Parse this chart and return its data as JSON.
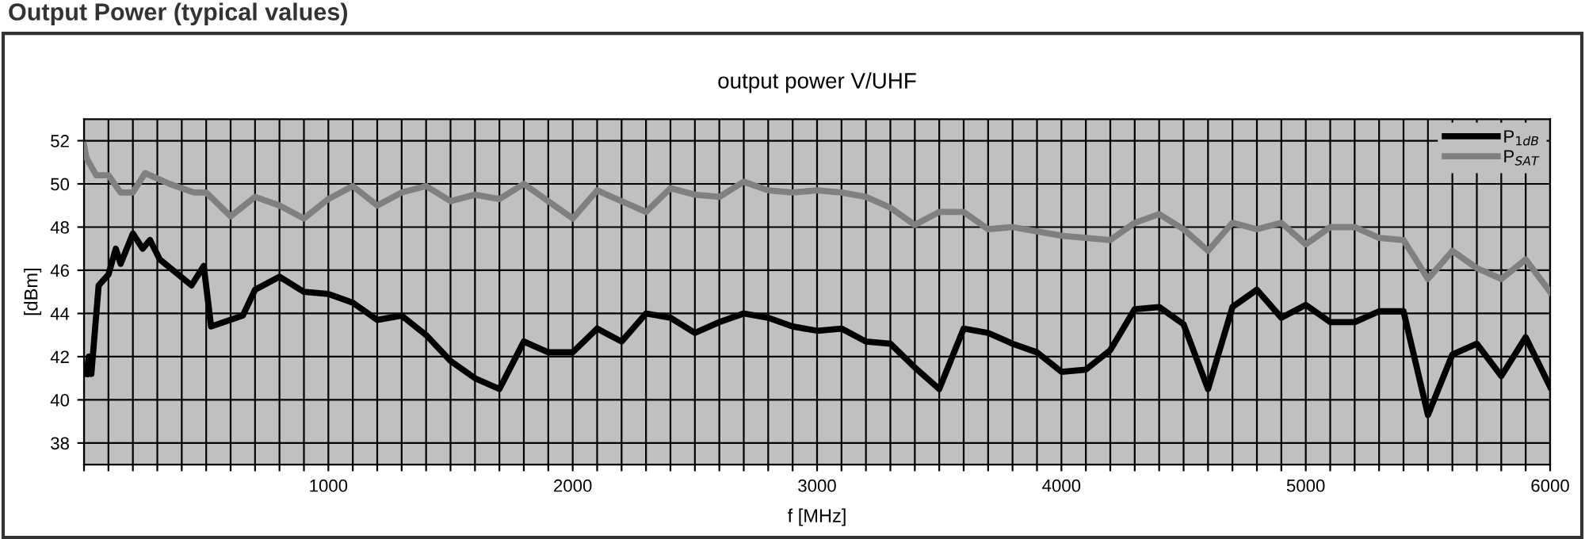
{
  "chart_data": {
    "type": "line",
    "title": "output power V/UHF",
    "xlabel": "f [MHz]",
    "ylabel": "[dBm]",
    "annotations": [
      "Output Power (typical values)"
    ],
    "xlim": [
      0,
      6000
    ],
    "ylim": [
      37,
      53
    ],
    "xticks": [
      {
        "value": 0,
        "label": null
      },
      {
        "value": 100,
        "label": null
      },
      {
        "value": 200,
        "label": null
      },
      {
        "value": 300,
        "label": null
      },
      {
        "value": 400,
        "label": null
      },
      {
        "value": 500,
        "label": null
      },
      {
        "value": 600,
        "label": null
      },
      {
        "value": 700,
        "label": null
      },
      {
        "value": 800,
        "label": null
      },
      {
        "value": 900,
        "label": null
      },
      1000,
      {
        "value": 1100,
        "label": null
      },
      {
        "value": 1200,
        "label": null
      },
      {
        "value": 1300,
        "label": null
      },
      {
        "value": 1400,
        "label": null
      },
      {
        "value": 1500,
        "label": null
      },
      {
        "value": 1600,
        "label": null
      },
      {
        "value": 1700,
        "label": null
      },
      {
        "value": 1800,
        "label": null
      },
      {
        "value": 1900,
        "label": null
      },
      2000,
      {
        "value": 2100,
        "label": null
      },
      {
        "value": 2200,
        "label": null
      },
      {
        "value": 2300,
        "label": null
      },
      {
        "value": 2400,
        "label": null
      },
      {
        "value": 2500,
        "label": null
      },
      {
        "value": 2600,
        "label": null
      },
      {
        "value": 2700,
        "label": null
      },
      {
        "value": 2800,
        "label": null
      },
      {
        "value": 2900,
        "label": null
      },
      3000,
      {
        "value": 3100,
        "label": null
      },
      {
        "value": 3200,
        "label": null
      },
      {
        "value": 3300,
        "label": null
      },
      {
        "value": 3400,
        "label": null
      },
      {
        "value": 3500,
        "label": null
      },
      {
        "value": 3600,
        "label": null
      },
      {
        "value": 3700,
        "label": null
      },
      {
        "value": 3800,
        "label": null
      },
      {
        "value": 3900,
        "label": null
      },
      4000,
      {
        "value": 4100,
        "label": null
      },
      {
        "value": 4200,
        "label": null
      },
      {
        "value": 4300,
        "label": null
      },
      {
        "value": 4400,
        "label": null
      },
      {
        "value": 4500,
        "label": null
      },
      {
        "value": 4600,
        "label": null
      },
      {
        "value": 4700,
        "label": null
      },
      {
        "value": 4800,
        "label": null
      },
      {
        "value": 4900,
        "label": null
      },
      5000,
      {
        "value": 5100,
        "label": null
      },
      {
        "value": 5200,
        "label": null
      },
      {
        "value": 5300,
        "label": null
      },
      {
        "value": 5400,
        "label": null
      },
      {
        "value": 5500,
        "label": null
      },
      {
        "value": 5600,
        "label": null
      },
      {
        "value": 5700,
        "label": null
      },
      {
        "value": 5800,
        "label": null
      },
      {
        "value": 5900,
        "label": null
      },
      6000
    ],
    "yticks": [
      38,
      40,
      42,
      44,
      46,
      48,
      50,
      52
    ],
    "grid": true,
    "legend": "top right",
    "marker": "none",
    "line_style": "solid",
    "series": [
      {
        "name": "P$_{1dB}$",
        "color": "#000000",
        "x": [
          10,
          20,
          30,
          60,
          100,
          130,
          150,
          200,
          240,
          270,
          310,
          440,
          490,
          520,
          650,
          700,
          800,
          900,
          1000,
          1100,
          1200,
          1300,
          1400,
          1500,
          1600,
          1700,
          1800,
          1900,
          2000,
          2100,
          2200,
          2300,
          2400,
          2500,
          2600,
          2700,
          2800,
          2900,
          3000,
          3100,
          3200,
          3300,
          3400,
          3500,
          3600,
          3700,
          3800,
          3900,
          4000,
          4100,
          4200,
          4300,
          4400,
          4500,
          4600,
          4700,
          4800,
          4900,
          5000,
          5100,
          5200,
          5300,
          5400,
          5500,
          5600,
          5700,
          5800,
          5900,
          6000
        ],
        "values": [
          41.2,
          42,
          41.2,
          45.3,
          45.8,
          47,
          46.3,
          47.7,
          47,
          47.4,
          46.5,
          45.3,
          46.2,
          43.4,
          43.9,
          45.1,
          45.7,
          45,
          44.9,
          44.5,
          43.7,
          43.9,
          43,
          41.8,
          41,
          40.5,
          42.7,
          42.2,
          42.2,
          43.3,
          42.7,
          44,
          43.8,
          43.1,
          43.6,
          44,
          43.8,
          43.4,
          43.2,
          43.3,
          42.7,
          42.6,
          41.5,
          40.5,
          43.3,
          43.1,
          42.6,
          42.2,
          41.3,
          41.4,
          42.3,
          44.2,
          44.3,
          43.5,
          40.5,
          44.3,
          45.1,
          43.8,
          44.4,
          43.6,
          43.6,
          44.1,
          44.1,
          39.3,
          42.1,
          42.6,
          41.1,
          42.9,
          40.6
        ]
      },
      {
        "name": "P$_{SAT}$",
        "color": "#808080",
        "x": [
          0,
          10,
          50,
          100,
          150,
          200,
          250,
          350,
          450,
          500,
          600,
          700,
          800,
          900,
          1000,
          1100,
          1200,
          1300,
          1400,
          1500,
          1600,
          1700,
          1800,
          1900,
          2000,
          2100,
          2300,
          2400,
          2500,
          2600,
          2700,
          2800,
          2900,
          3000,
          3100,
          3200,
          3300,
          3400,
          3500,
          3600,
          3700,
          3800,
          3900,
          4000,
          4100,
          4200,
          4300,
          4400,
          4500,
          4600,
          4700,
          4800,
          4900,
          5000,
          5100,
          5200,
          5300,
          5400,
          5500,
          5600,
          5700,
          5800,
          5900,
          6000
        ],
        "values": [
          51.8,
          51.2,
          50.4,
          50.4,
          49.6,
          49.6,
          50.5,
          50,
          49.6,
          49.6,
          48.5,
          49.4,
          49,
          48.4,
          49.3,
          49.9,
          49,
          49.6,
          49.9,
          49.2,
          49.5,
          49.3,
          50,
          49.2,
          48.4,
          49.7,
          48.7,
          49.8,
          49.5,
          49.4,
          50.1,
          49.7,
          49.6,
          49.7,
          49.6,
          49.4,
          48.9,
          48.1,
          48.7,
          48.7,
          47.9,
          48,
          47.8,
          47.6,
          47.5,
          47.4,
          48.2,
          48.6,
          47.9,
          46.9,
          48.2,
          47.9,
          48.2,
          47.2,
          48,
          48,
          47.5,
          47.4,
          45.6,
          46.9,
          46.1,
          45.6,
          46.5,
          45
        ]
      }
    ]
  }
}
